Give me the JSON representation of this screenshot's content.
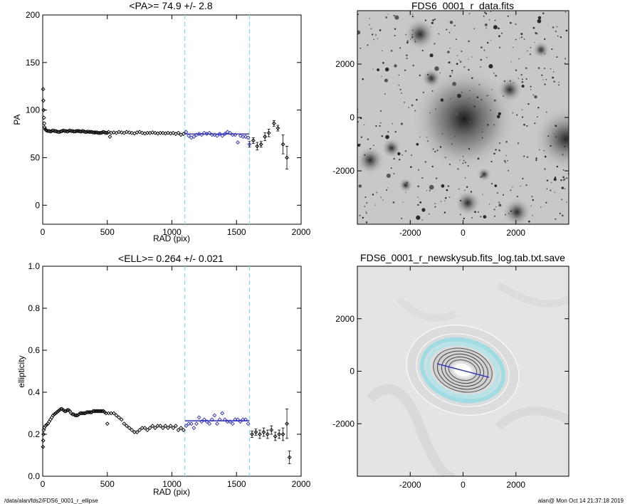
{
  "footer": {
    "path": "/data/alan/fds2/FDS6_0001_r_ellipse",
    "stamp": "alan@  Mon Oct 14 21:37:18 2019"
  },
  "colors": {
    "fit_line": "#2a2ad0",
    "cut_line": "#7fe0ee",
    "points": "#000000"
  },
  "chart_data": [
    {
      "type": "scatter",
      "title": "<PA>=  74.9 +/-   2.8",
      "xlabel": "RAD (pix)",
      "ylabel": "PA",
      "xlim": [
        0,
        2000
      ],
      "ylim": [
        -20,
        200
      ],
      "xticks": [
        "0",
        "500",
        "1000",
        "1500",
        "2000"
      ],
      "yticks": [
        "0",
        "50",
        "100",
        "150",
        "200"
      ],
      "vlines": [
        1100,
        1600
      ],
      "fit": {
        "x": [
          1100,
          1600
        ],
        "y": 74.9
      },
      "series": [
        {
          "points": [
            [
              3,
              122
            ],
            [
              5,
              110
            ],
            [
              7,
              100
            ],
            [
              9,
              92
            ],
            [
              12,
              86
            ],
            [
              15,
              82
            ],
            [
              20,
              80
            ],
            [
              25,
              79
            ],
            [
              30,
              78.5
            ],
            [
              40,
              78
            ],
            [
              50,
              78
            ],
            [
              60,
              77.5
            ],
            [
              70,
              78
            ],
            [
              80,
              78.5
            ],
            [
              90,
              78
            ],
            [
              100,
              78
            ],
            [
              110,
              77.5
            ],
            [
              120,
              77
            ],
            [
              130,
              77
            ],
            [
              140,
              77.5
            ],
            [
              150,
              78
            ],
            [
              160,
              78.5
            ],
            [
              170,
              78
            ],
            [
              180,
              78
            ],
            [
              190,
              77.5
            ],
            [
              200,
              78
            ],
            [
              210,
              78.5
            ],
            [
              220,
              78
            ],
            [
              230,
              78
            ],
            [
              240,
              77.5
            ],
            [
              250,
              77.5
            ],
            [
              260,
              78
            ],
            [
              270,
              78
            ],
            [
              280,
              78
            ],
            [
              290,
              77.5
            ],
            [
              300,
              77.5
            ],
            [
              310,
              78
            ],
            [
              320,
              77.5
            ],
            [
              330,
              77
            ],
            [
              340,
              77
            ],
            [
              350,
              77.5
            ],
            [
              360,
              77
            ],
            [
              370,
              77
            ],
            [
              380,
              77
            ],
            [
              390,
              76.5
            ],
            [
              400,
              76.5
            ],
            [
              410,
              76.5
            ],
            [
              420,
              76.5
            ],
            [
              430,
              76
            ],
            [
              440,
              76
            ],
            [
              450,
              76
            ],
            [
              460,
              76.5
            ],
            [
              470,
              77
            ],
            [
              480,
              76.5
            ],
            [
              490,
              76
            ],
            [
              500,
              76
            ],
            [
              510,
              77
            ],
            [
              520,
              72
            ],
            [
              530,
              76
            ],
            [
              550,
              76.5
            ],
            [
              570,
              76
            ],
            [
              590,
              77
            ],
            [
              610,
              76.5
            ],
            [
              630,
              76
            ],
            [
              650,
              77
            ],
            [
              670,
              76.5
            ],
            [
              690,
              76
            ],
            [
              710,
              75.5
            ],
            [
              730,
              76.5
            ],
            [
              750,
              77
            ],
            [
              770,
              76
            ],
            [
              790,
              75.5
            ],
            [
              810,
              76
            ],
            [
              830,
              76
            ],
            [
              850,
              76.5
            ],
            [
              870,
              76
            ],
            [
              890,
              75.5
            ],
            [
              910,
              76
            ],
            [
              930,
              76
            ],
            [
              950,
              75.5
            ],
            [
              970,
              76
            ],
            [
              990,
              75.5
            ],
            [
              1010,
              76
            ],
            [
              1030,
              75
            ],
            [
              1050,
              76
            ],
            [
              1070,
              74
            ],
            [
              1090,
              75
            ],
            [
              1110,
              77
            ],
            [
              1130,
              73
            ],
            [
              1150,
              71
            ],
            [
              1170,
              72
            ],
            [
              1190,
              74
            ],
            [
              1210,
              75
            ],
            [
              1230,
              74
            ],
            [
              1250,
              76
            ],
            [
              1270,
              75
            ],
            [
              1290,
              76
            ],
            [
              1310,
              74
            ],
            [
              1330,
              74
            ],
            [
              1350,
              73
            ],
            [
              1370,
              75
            ],
            [
              1390,
              73
            ],
            [
              1410,
              75
            ],
            [
              1430,
              77
            ],
            [
              1450,
              76
            ],
            [
              1470,
              74
            ],
            [
              1490,
              74
            ],
            [
              1510,
              66
            ],
            [
              1530,
              73
            ],
            [
              1550,
              72
            ],
            [
              1570,
              72
            ],
            [
              1590,
              71
            ]
          ]
        },
        {
          "points": [
            [
              1600,
              64
            ],
            [
              1630,
              68
            ],
            [
              1660,
              62
            ],
            [
              1690,
              64
            ],
            [
              1720,
              72
            ],
            [
              1750,
              76
            ],
            [
              1790,
              86
            ],
            [
              1820,
              81
            ],
            [
              1860,
              64
            ],
            [
              1890,
              50
            ]
          ],
          "errors": [
            3,
            3,
            4,
            3,
            4,
            4,
            3,
            3,
            10,
            12
          ]
        }
      ]
    },
    {
      "type": "image",
      "title": "FDS6_0001_r_data.fits",
      "xlim": [
        -4000,
        4000
      ],
      "ylim": [
        -4000,
        4000
      ],
      "xticks": [
        "-2000",
        "0",
        "2000"
      ],
      "yticks": [
        "-2000",
        "0",
        "2000"
      ]
    },
    {
      "type": "scatter",
      "title": "<ELL>= 0.264 +/-  0.021",
      "xlabel": "RAD (pix)",
      "ylabel": "ellipticity",
      "xlim": [
        0,
        2000
      ],
      "ylim": [
        0,
        1
      ],
      "xticks": [
        "0",
        "500",
        "1000",
        "1500",
        "2000"
      ],
      "yticks": [
        "0.0",
        "0.2",
        "0.4",
        "0.6",
        "0.8",
        "1.0"
      ],
      "vlines": [
        1100,
        1600
      ],
      "fit": {
        "x": [
          1100,
          1600
        ],
        "y": 0.264
      },
      "series": [
        {
          "points": [
            [
              2,
              0.14
            ],
            [
              4,
              0.17
            ],
            [
              6,
              0.2
            ],
            [
              8,
              0.22
            ],
            [
              12,
              0.23
            ],
            [
              20,
              0.24
            ],
            [
              30,
              0.245
            ],
            [
              40,
              0.25
            ],
            [
              50,
              0.26
            ],
            [
              60,
              0.27
            ],
            [
              70,
              0.28
            ],
            [
              80,
              0.29
            ],
            [
              90,
              0.295
            ],
            [
              100,
              0.3
            ],
            [
              110,
              0.305
            ],
            [
              120,
              0.31
            ],
            [
              130,
              0.315
            ],
            [
              140,
              0.32
            ],
            [
              150,
              0.32
            ],
            [
              160,
              0.315
            ],
            [
              170,
              0.31
            ],
            [
              180,
              0.31
            ],
            [
              190,
              0.315
            ],
            [
              200,
              0.315
            ],
            [
              210,
              0.31
            ],
            [
              220,
              0.3
            ],
            [
              230,
              0.295
            ],
            [
              240,
              0.295
            ],
            [
              250,
              0.29
            ],
            [
              260,
              0.29
            ],
            [
              270,
              0.29
            ],
            [
              280,
              0.295
            ],
            [
              290,
              0.3
            ],
            [
              300,
              0.3
            ],
            [
              310,
              0.3
            ],
            [
              320,
              0.3
            ],
            [
              330,
              0.3
            ],
            [
              340,
              0.305
            ],
            [
              350,
              0.305
            ],
            [
              360,
              0.305
            ],
            [
              370,
              0.305
            ],
            [
              380,
              0.305
            ],
            [
              390,
              0.31
            ],
            [
              400,
              0.31
            ],
            [
              410,
              0.31
            ],
            [
              420,
              0.31
            ],
            [
              430,
              0.31
            ],
            [
              440,
              0.31
            ],
            [
              450,
              0.31
            ],
            [
              460,
              0.31
            ],
            [
              470,
              0.31
            ],
            [
              480,
              0.305
            ],
            [
              490,
              0.3
            ],
            [
              500,
              0.25
            ],
            [
              510,
              0.3
            ],
            [
              530,
              0.3
            ],
            [
              550,
              0.3
            ],
            [
              570,
              0.29
            ],
            [
              590,
              0.28
            ],
            [
              610,
              0.27
            ],
            [
              630,
              0.25
            ],
            [
              650,
              0.24
            ],
            [
              670,
              0.23
            ],
            [
              690,
              0.22
            ],
            [
              710,
              0.21
            ],
            [
              730,
              0.21
            ],
            [
              750,
              0.22
            ],
            [
              770,
              0.23
            ],
            [
              790,
              0.23
            ],
            [
              810,
              0.22
            ],
            [
              830,
              0.23
            ],
            [
              850,
              0.24
            ],
            [
              870,
              0.23
            ],
            [
              890,
              0.24
            ],
            [
              910,
              0.24
            ],
            [
              930,
              0.23
            ],
            [
              950,
              0.24
            ],
            [
              970,
              0.23
            ],
            [
              990,
              0.24
            ],
            [
              1010,
              0.23
            ],
            [
              1030,
              0.24
            ],
            [
              1050,
              0.22
            ],
            [
              1070,
              0.23
            ],
            [
              1090,
              0.22
            ],
            [
              1110,
              0.24
            ],
            [
              1130,
              0.25
            ],
            [
              1150,
              0.25
            ],
            [
              1170,
              0.23
            ],
            [
              1190,
              0.25
            ],
            [
              1210,
              0.28
            ],
            [
              1230,
              0.26
            ],
            [
              1250,
              0.27
            ],
            [
              1270,
              0.26
            ],
            [
              1290,
              0.25
            ],
            [
              1310,
              0.27
            ],
            [
              1330,
              0.29
            ],
            [
              1350,
              0.25
            ],
            [
              1370,
              0.27
            ],
            [
              1390,
              0.3
            ],
            [
              1410,
              0.27
            ],
            [
              1430,
              0.26
            ],
            [
              1450,
              0.26
            ],
            [
              1470,
              0.25
            ],
            [
              1490,
              0.27
            ],
            [
              1510,
              0.27
            ],
            [
              1530,
              0.26
            ],
            [
              1550,
              0.27
            ],
            [
              1570,
              0.27
            ],
            [
              1590,
              0.25
            ]
          ]
        },
        {
          "points": [
            [
              1620,
              0.2
            ],
            [
              1650,
              0.21
            ],
            [
              1680,
              0.2
            ],
            [
              1710,
              0.21
            ],
            [
              1740,
              0.2
            ],
            [
              1770,
              0.22
            ],
            [
              1800,
              0.19
            ],
            [
              1830,
              0.2
            ],
            [
              1860,
              0.2
            ],
            [
              1890,
              0.25
            ],
            [
              1910,
              0.09
            ]
          ],
          "errors": [
            0.015,
            0.015,
            0.02,
            0.02,
            0.02,
            0.02,
            0.02,
            0.02,
            0.03,
            0.07,
            0.03
          ]
        }
      ]
    },
    {
      "type": "image",
      "title": "FDS6_0001_r_newskysub.fits_log.tab.txt.save",
      "xlim": [
        -4000,
        4000
      ],
      "ylim": [
        -4000,
        4000
      ],
      "xticks": [
        "-2000",
        "0",
        "2000"
      ],
      "yticks": [
        "-2000",
        "0",
        "2000"
      ]
    }
  ]
}
